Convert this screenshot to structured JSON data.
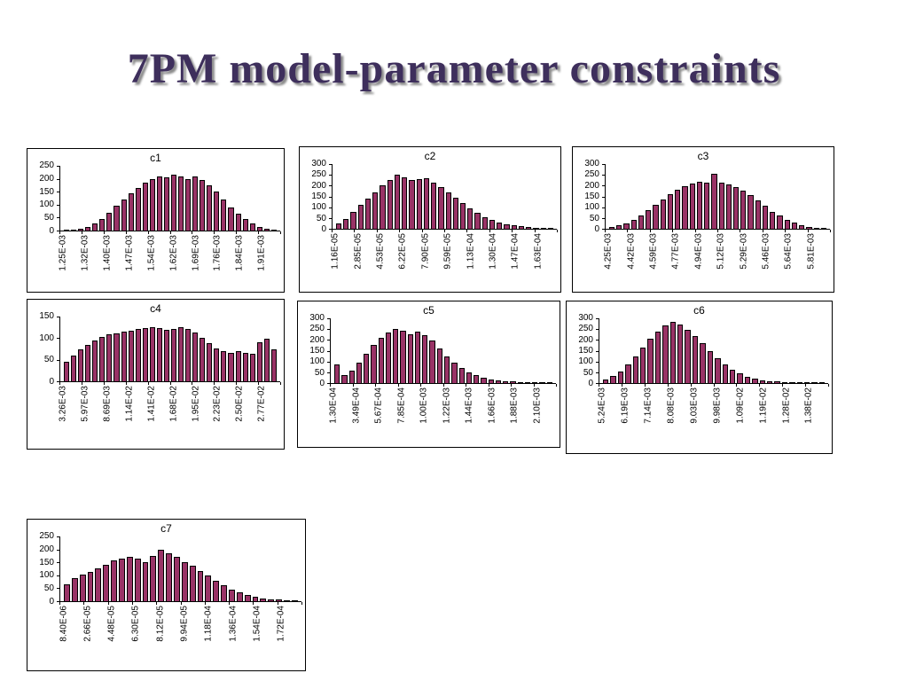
{
  "slide": {
    "title": "7PM model-parameter constraints",
    "title_color": "#3e2f5c",
    "background_color": "#ffffff"
  },
  "chart_data": [
    {
      "type": "bar",
      "title": "c1",
      "xlabel": "",
      "ylabel": "",
      "ylim": [
        0,
        250
      ],
      "yticks": [
        250,
        200,
        150,
        100,
        50,
        0
      ],
      "grid": false,
      "legend": "none",
      "bar_color": "#993366",
      "xtick_labels": [
        "1.25E-03",
        "1.32E-03",
        "1.40E-03",
        "1.47E-03",
        "1.54E-03",
        "1.62E-03",
        "1.69E-03",
        "1.76E-03",
        "1.84E-03",
        "1.91E-03"
      ],
      "values": [
        2,
        4,
        8,
        15,
        28,
        45,
        70,
        95,
        120,
        145,
        165,
        185,
        200,
        210,
        205,
        215,
        208,
        198,
        210,
        195,
        175,
        150,
        120,
        90,
        65,
        45,
        28,
        15,
        8,
        4
      ]
    },
    {
      "type": "bar",
      "title": "c2",
      "xlabel": "",
      "ylabel": "",
      "ylim": [
        0,
        300
      ],
      "yticks": [
        300,
        250,
        200,
        150,
        100,
        50,
        0
      ],
      "grid": false,
      "legend": "none",
      "bar_color": "#993366",
      "xtick_labels": [
        "1.16E-05",
        "2.85E-05",
        "4.53E-05",
        "6.22E-05",
        "7.90E-05",
        "9.59E-05",
        "1.13E-04",
        "1.30E-04",
        "1.47E-04",
        "1.63E-04"
      ],
      "values": [
        25,
        45,
        80,
        110,
        140,
        170,
        200,
        225,
        250,
        240,
        228,
        232,
        236,
        215,
        195,
        170,
        145,
        120,
        95,
        75,
        55,
        42,
        30,
        22,
        15,
        11,
        8,
        6,
        4,
        3
      ]
    },
    {
      "type": "bar",
      "title": "c3",
      "xlabel": "",
      "ylabel": "",
      "ylim": [
        0,
        300
      ],
      "yticks": [
        300,
        250,
        200,
        150,
        100,
        50,
        0
      ],
      "grid": false,
      "legend": "none",
      "bar_color": "#993366",
      "xtick_labels": [
        "4.25E-03",
        "4.42E-03",
        "4.59E-03",
        "4.77E-03",
        "4.94E-03",
        "5.12E-03",
        "5.29E-03",
        "5.46E-03",
        "5.64E-03",
        "5.81E-03"
      ],
      "values": [
        8,
        15,
        25,
        40,
        60,
        85,
        110,
        135,
        160,
        180,
        198,
        210,
        218,
        214,
        255,
        214,
        205,
        194,
        178,
        155,
        130,
        105,
        80,
        60,
        42,
        28,
        18,
        10,
        6,
        3
      ]
    },
    {
      "type": "bar",
      "title": "c4",
      "xlabel": "",
      "ylabel": "",
      "ylim": [
        0,
        150
      ],
      "yticks": [
        150,
        100,
        50,
        0
      ],
      "grid": false,
      "legend": "none",
      "bar_color": "#993366",
      "xtick_labels": [
        "3.26E-03",
        "5.97E-03",
        "8.69E-03",
        "1.14E-02",
        "1.41E-02",
        "1.68E-02",
        "1.95E-02",
        "2.23E-02",
        "2.50E-02",
        "2.77E-02"
      ],
      "values": [
        46,
        60,
        73,
        85,
        95,
        103,
        108,
        112,
        116,
        118,
        121,
        124,
        126,
        123,
        119,
        122,
        125,
        121,
        113,
        101,
        88,
        77,
        70,
        66,
        69,
        66,
        64,
        91,
        98,
        74
      ]
    },
    {
      "type": "bar",
      "title": "c5",
      "xlabel": "",
      "ylabel": "",
      "ylim": [
        0,
        300
      ],
      "yticks": [
        300,
        250,
        200,
        150,
        100,
        50,
        0
      ],
      "grid": false,
      "legend": "none",
      "bar_color": "#993366",
      "xtick_labels": [
        "1.30E-04",
        "3.49E-04",
        "5.67E-04",
        "7.85E-04",
        "1.00E-03",
        "1.22E-03",
        "1.44E-03",
        "1.66E-03",
        "1.88E-03",
        "2.10E-03"
      ],
      "values": [
        88,
        36,
        56,
        95,
        135,
        175,
        210,
        236,
        250,
        243,
        228,
        238,
        220,
        196,
        160,
        125,
        95,
        70,
        50,
        36,
        26,
        18,
        13,
        10,
        8,
        6,
        5,
        4,
        3,
        2
      ]
    },
    {
      "type": "bar",
      "title": "c6",
      "xlabel": "",
      "ylabel": "",
      "ylim": [
        0,
        300
      ],
      "yticks": [
        300,
        250,
        200,
        150,
        100,
        50,
        0
      ],
      "grid": false,
      "legend": "none",
      "bar_color": "#993366",
      "xtick_labels": [
        "5.24E-03",
        "6.19E-03",
        "7.14E-03",
        "8.08E-03",
        "9.03E-03",
        "9.98E-03",
        "1.09E-02",
        "1.19E-02",
        "1.28E-02",
        "1.38E-02"
      ],
      "values": [
        18,
        32,
        55,
        85,
        125,
        165,
        205,
        240,
        268,
        285,
        272,
        248,
        218,
        185,
        150,
        115,
        85,
        62,
        45,
        30,
        20,
        14,
        10,
        7,
        5,
        4,
        3,
        2,
        2,
        1
      ]
    },
    {
      "type": "bar",
      "title": "c7",
      "xlabel": "",
      "ylabel": "",
      "ylim": [
        0,
        250
      ],
      "yticks": [
        250,
        200,
        150,
        100,
        50,
        0
      ],
      "grid": false,
      "legend": "none",
      "bar_color": "#993366",
      "xtick_labels": [
        "8.40E-06",
        "2.66E-05",
        "4.48E-05",
        "6.30E-05",
        "8.12E-05",
        "9.94E-05",
        "1.18E-04",
        "1.36E-04",
        "1.54E-04",
        "1.72E-04"
      ],
      "values": [
        66,
        88,
        102,
        112,
        126,
        142,
        158,
        166,
        170,
        163,
        152,
        174,
        200,
        186,
        170,
        152,
        136,
        118,
        98,
        80,
        62,
        46,
        33,
        23,
        16,
        11,
        8,
        6,
        4,
        3
      ]
    }
  ]
}
